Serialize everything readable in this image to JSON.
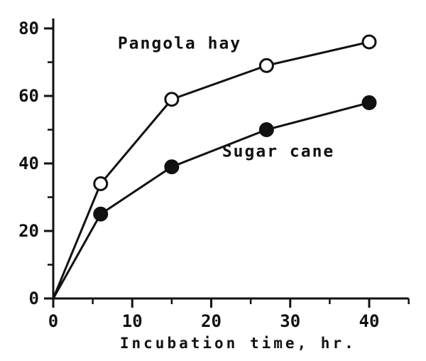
{
  "chart_data": {
    "type": "line",
    "title": "",
    "xlabel": "Incubation time, hr.",
    "ylabel": "",
    "xlim": [
      0,
      45
    ],
    "ylim": [
      0,
      80
    ],
    "x_ticks": {
      "major": [
        0,
        10,
        20,
        30,
        40
      ],
      "minor": [
        5,
        15,
        25,
        35,
        45
      ]
    },
    "y_ticks": {
      "major": [
        0,
        20,
        40,
        60,
        80
      ],
      "minor": [
        10,
        30,
        50,
        70
      ]
    },
    "grid": false,
    "legend_position": "inline-labels",
    "colors": {
      "ink": "#111111",
      "background": "#ffffff"
    },
    "series": [
      {
        "name": "Pangola hay",
        "marker": "open-circle",
        "x": [
          0,
          6,
          15,
          27,
          40
        ],
        "values": [
          0,
          34,
          59,
          69,
          76
        ],
        "label_anchor": {
          "x": 16,
          "y": 74
        }
      },
      {
        "name": "Sugar cane",
        "marker": "filled-circle",
        "x": [
          0,
          6,
          15,
          27,
          40
        ],
        "values": [
          0,
          25,
          39,
          50,
          58
        ],
        "label_anchor": {
          "x": 28.5,
          "y": 42
        }
      }
    ]
  }
}
